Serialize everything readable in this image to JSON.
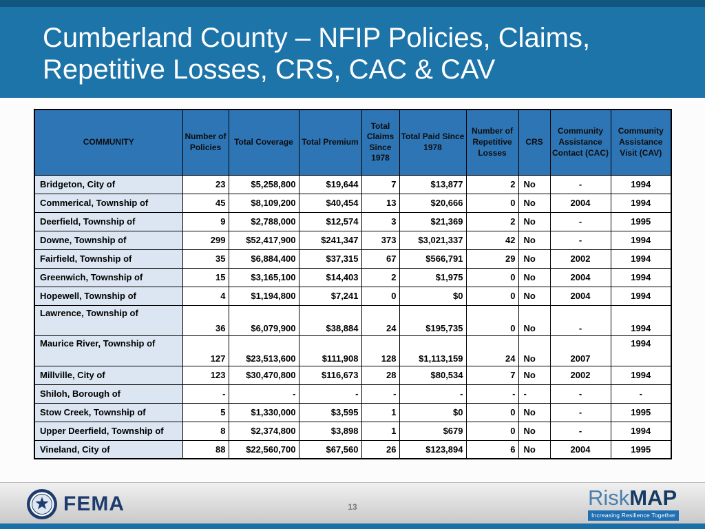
{
  "slide": {
    "title_line1": "Cumberland County – NFIP Policies, Claims,",
    "title_line2": "Repetitive Losses, CRS, CAC & CAV"
  },
  "colors": {
    "banner_blue": "#1D74A9",
    "banner_top_strip": "#12557E",
    "table_header_fill": "#2E75B6",
    "community_column_fill": "#DCE6F2",
    "table_border": "#000000",
    "footer_gray": "#D9D9D9",
    "fema_navy": "#1D3C6D",
    "riskmap_blue": "#1F6FB2",
    "bottom_strip_blue": "#1B6FA8"
  },
  "table": {
    "headers": [
      "COMMUNITY",
      "Number of Policies",
      "Total Coverage",
      "Total Premium",
      "Total Claims Since 1978",
      "Total Paid Since 1978",
      "Number of Repetitive Losses",
      "CRS",
      "Community Assistance Contact (CAC)",
      "Community Assistance Visit (CAV)"
    ],
    "rows": [
      {
        "tall": false,
        "cav_top": false,
        "cells": [
          "Bridgeton, City of",
          "23",
          "$5,258,800",
          "$19,644",
          "7",
          "$13,877",
          "2",
          "No",
          "-",
          "1994"
        ]
      },
      {
        "tall": false,
        "cav_top": false,
        "cells": [
          "Commerical, Township of",
          "45",
          "$8,109,200",
          "$40,454",
          "13",
          "$20,666",
          "0",
          "No",
          "2004",
          "1994"
        ]
      },
      {
        "tall": false,
        "cav_top": false,
        "cells": [
          "Deerfield, Township of",
          "9",
          "$2,788,000",
          "$12,574",
          "3",
          "$21,369",
          "2",
          "No",
          "-",
          "1995"
        ]
      },
      {
        "tall": false,
        "cav_top": false,
        "cells": [
          "Downe, Township of",
          "299",
          "$52,417,900",
          "$241,347",
          "373",
          "$3,021,337",
          "42",
          "No",
          "-",
          "1994"
        ]
      },
      {
        "tall": false,
        "cav_top": false,
        "cells": [
          "Fairfield, Township of",
          "35",
          "$6,884,400",
          "$37,315",
          "67",
          "$566,791",
          "29",
          "No",
          "2002",
          "1994"
        ]
      },
      {
        "tall": false,
        "cav_top": false,
        "cells": [
          "Greenwich, Township of",
          "15",
          "$3,165,100",
          "$14,403",
          "2",
          "$1,975",
          "0",
          "No",
          "2004",
          "1994"
        ]
      },
      {
        "tall": false,
        "cav_top": false,
        "cells": [
          "Hopewell, Township of",
          "4",
          "$1,194,800",
          "$7,241",
          "0",
          "$0",
          "0",
          "No",
          "2004",
          "1994"
        ]
      },
      {
        "tall": true,
        "cav_top": false,
        "cells": [
          "Lawrence, Township of",
          "36",
          "$6,079,900",
          "$38,884",
          "24",
          "$195,735",
          "0",
          "No",
          "-",
          "1994"
        ]
      },
      {
        "tall": true,
        "cav_top": true,
        "cells": [
          "Maurice River, Township of",
          "127",
          "$23,513,600",
          "$111,908",
          "128",
          "$1,113,159",
          "24",
          "No",
          "2007",
          "1994"
        ]
      },
      {
        "tall": false,
        "cav_top": false,
        "cells": [
          "Millville, City of",
          "123",
          "$30,470,800",
          "$116,673",
          "28",
          "$80,534",
          "7",
          "No",
          "2002",
          "1994"
        ]
      },
      {
        "tall": false,
        "cav_top": false,
        "cells": [
          "Shiloh, Borough of",
          "-",
          "-",
          "-",
          "-",
          "-",
          "-",
          "-",
          "-",
          "-"
        ]
      },
      {
        "tall": false,
        "cav_top": false,
        "cells": [
          "Stow Creek, Township of",
          "5",
          "$1,330,000",
          "$3,595",
          "1",
          "$0",
          "0",
          "No",
          "-",
          "1995"
        ]
      },
      {
        "tall": false,
        "cav_top": false,
        "cells": [
          "Upper Deerfield, Township of",
          "8",
          "$2,374,800",
          "$3,898",
          "1",
          "$679",
          "0",
          "No",
          "-",
          "1994"
        ]
      },
      {
        "tall": false,
        "cav_top": false,
        "cells": [
          "Vineland, City of",
          "88",
          "$22,560,700",
          "$67,560",
          "26",
          "$123,894",
          "6",
          "No",
          "2004",
          "1995"
        ]
      }
    ]
  },
  "footer": {
    "fema_label": "FEMA",
    "page_number": "13",
    "riskmap_risk": "Risk",
    "riskmap_map": "MAP",
    "riskmap_tagline": "Increasing Resilience Together"
  }
}
